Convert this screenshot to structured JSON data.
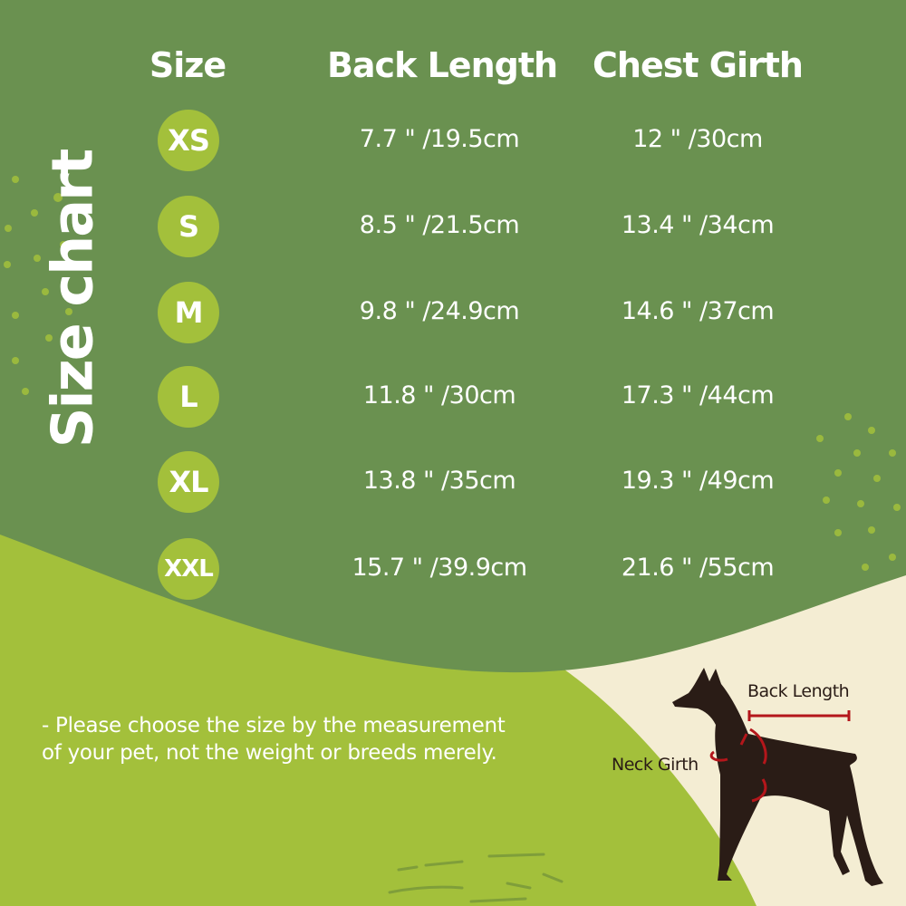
{
  "title": "Size chart",
  "headers": [
    "Size",
    "Back Length",
    "Chest Girth"
  ],
  "rows": [
    {
      "size": "XS",
      "back": "7.7 \" /19.5cm",
      "chest": "12 \" /30cm"
    },
    {
      "size": "S",
      "back": "8.5 \" /21.5cm",
      "chest": "13.4 \" /34cm"
    },
    {
      "size": "M",
      "back": "9.8 \" /24.9cm",
      "chest": "14.6 \" /37cm"
    },
    {
      "size": "L",
      "back": "11.8 \" /30cm",
      "chest": "17.3 \" /44cm"
    },
    {
      "size": "XL",
      "back": "13.8 \" /35cm",
      "chest": "19.3 \" /49cm"
    },
    {
      "size": "XXL",
      "back": "15.7 \" /39.9cm",
      "chest": "21.6 \" /55cm"
    }
  ],
  "note": [
    "- Please choose the size by the measurement",
    "of your pet, not the weight or breeds merely."
  ],
  "diagram": {
    "back_label": "Back Length",
    "neck_label": "Neck Girth"
  },
  "colors": {
    "dark_green": "#6a9150",
    "light_green": "#a3c03b",
    "cream": "#f4edd3",
    "dog": "#2a1c16",
    "arrow": "#b4161b"
  }
}
